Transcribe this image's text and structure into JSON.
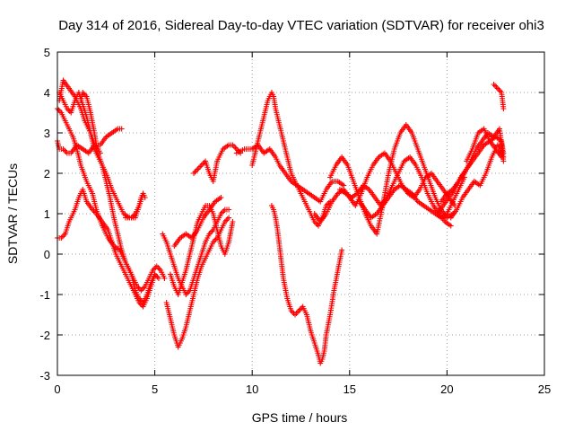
{
  "chart_data": {
    "type": "scatter",
    "title": "Day 314 of 2016, Sidereal Day-to-day VTEC variation (SDTVAR) for receiver ohi3",
    "xlabel": "GPS time / hours",
    "ylabel": "SDTVAR / TECUs",
    "xlim": [
      0,
      25
    ],
    "ylim": [
      -3,
      5
    ],
    "xticks": [
      0,
      5,
      10,
      15,
      20,
      25
    ],
    "yticks": [
      -3,
      -2,
      -1,
      0,
      1,
      2,
      3,
      4,
      5
    ],
    "grid": true,
    "marker": "+",
    "color": "#ff0000",
    "series": [
      {
        "x": [
          0.0,
          0.1,
          0.3,
          0.5,
          0.7,
          1.0,
          1.3,
          1.6,
          1.9,
          2.2,
          2.5,
          2.8,
          3.1,
          3.3
        ],
        "y": [
          2.8,
          2.6,
          2.6,
          2.5,
          2.5,
          2.7,
          2.6,
          2.5,
          2.7,
          2.7,
          2.9,
          3.0,
          3.1,
          3.1
        ]
      },
      {
        "x": [
          0.0,
          0.2,
          0.4,
          0.6,
          0.8,
          1.0,
          1.2,
          1.5,
          1.8,
          2.0,
          2.3,
          2.6,
          2.9,
          3.2,
          3.5,
          3.8,
          4.0,
          4.2,
          4.4,
          4.6,
          4.8,
          5.0,
          5.2
        ],
        "y": [
          3.6,
          3.5,
          3.3,
          3.1,
          2.9,
          2.6,
          2.2,
          1.8,
          1.5,
          1.1,
          0.7,
          0.4,
          0.2,
          0.1,
          -0.2,
          -0.5,
          -0.9,
          -1.1,
          -1.2,
          -1.0,
          -0.7,
          -0.5,
          -0.6
        ]
      },
      {
        "x": [
          0.1,
          0.2,
          0.4,
          0.5,
          0.7,
          0.9,
          1.1,
          1.3,
          1.5,
          1.7,
          1.9,
          2.2,
          2.5,
          2.8,
          3.1,
          3.4,
          3.7,
          4.0,
          4.2,
          4.4
        ],
        "y": [
          4.0,
          3.9,
          3.7,
          3.6,
          3.5,
          3.8,
          4.0,
          3.7,
          3.4,
          3.0,
          2.6,
          2.3,
          2.0,
          1.6,
          1.3,
          1.0,
          0.9,
          0.9,
          1.2,
          1.5
        ]
      },
      {
        "x": [
          0.0,
          0.2,
          0.4,
          0.6,
          0.9,
          1.1,
          1.3,
          1.5,
          1.8,
          2.0,
          2.3,
          2.6,
          2.8,
          3.0,
          3.2,
          3.4,
          3.6,
          3.8,
          4.0,
          4.2,
          4.4,
          4.6,
          4.8,
          5.0
        ],
        "y": [
          0.4,
          0.4,
          0.5,
          0.8,
          1.1,
          1.4,
          1.6,
          1.3,
          1.1,
          1.0,
          0.8,
          0.6,
          0.3,
          0.0,
          -0.2,
          -0.4,
          -0.6,
          -0.8,
          -1.0,
          -1.2,
          -1.3,
          -1.1,
          -0.8,
          -0.5
        ]
      },
      {
        "x": [
          0.1,
          0.3,
          0.6,
          0.9,
          1.2,
          1.4,
          1.7,
          2.0,
          2.3,
          2.5,
          2.7,
          2.9,
          3.1,
          3.3,
          3.5,
          3.7,
          3.9,
          4.1,
          4.3,
          4.5,
          4.7,
          4.9,
          5.1,
          5.3,
          5.5
        ],
        "y": [
          3.8,
          4.3,
          4.1,
          3.9,
          3.6,
          3.3,
          3.0,
          2.6,
          2.2,
          1.8,
          1.4,
          0.9,
          0.5,
          0.1,
          -0.2,
          -0.4,
          -0.6,
          -0.8,
          -0.9,
          -0.8,
          -0.6,
          -0.4,
          -0.3,
          -0.4,
          -0.6
        ]
      },
      {
        "x": [
          1.2,
          1.3,
          1.5,
          1.7,
          1.9,
          2.0,
          2.2
        ],
        "y": [
          3.8,
          4.0,
          3.9,
          3.5,
          3.0,
          2.7,
          2.5
        ]
      },
      {
        "x": [
          3.5,
          3.8,
          4.0,
          4.2,
          4.3,
          4.4,
          4.5
        ],
        "y": [
          0.9,
          0.9,
          1.0,
          1.2,
          1.4,
          1.5,
          1.4
        ]
      },
      {
        "x": [
          5.4,
          5.6,
          5.8,
          6.0,
          6.2,
          6.4,
          6.6,
          6.8,
          7.0,
          7.2,
          7.4,
          7.6,
          7.8,
          8.0,
          8.2,
          8.4,
          8.6,
          8.8
        ],
        "y": [
          0.5,
          0.3,
          0.0,
          -0.3,
          -0.6,
          -0.8,
          -1.0,
          -0.9,
          -0.6,
          -0.3,
          0.0,
          0.3,
          0.5,
          0.6,
          0.8,
          1.0,
          1.1,
          1.1
        ]
      },
      {
        "x": [
          5.8,
          6.0,
          6.2,
          6.4,
          6.6,
          6.8,
          7.0,
          7.2,
          7.4,
          7.6,
          7.8,
          8.0,
          8.2,
          8.4,
          8.6,
          8.8,
          9.0
        ],
        "y": [
          -0.5,
          -0.8,
          -1.0,
          -0.7,
          -0.4,
          0.0,
          0.4,
          0.8,
          1.0,
          1.2,
          1.2,
          1.0,
          0.6,
          0.2,
          0.0,
          0.3,
          0.8
        ]
      },
      {
        "x": [
          5.6,
          5.8,
          6.0,
          6.2,
          6.4,
          6.6,
          6.8,
          7.0,
          7.2,
          7.4,
          7.6,
          7.8,
          8.0,
          8.2,
          8.4,
          8.6,
          8.8
        ],
        "y": [
          -1.2,
          -1.6,
          -2.0,
          -2.3,
          -2.1,
          -1.8,
          -1.4,
          -1.0,
          -0.6,
          -0.3,
          -0.1,
          0.1,
          0.3,
          0.4,
          0.6,
          0.8,
          0.9
        ]
      },
      {
        "x": [
          6.0,
          6.3,
          6.6,
          6.9,
          7.2,
          7.5,
          7.8,
          8.1,
          8.4
        ],
        "y": [
          0.2,
          0.4,
          0.5,
          0.4,
          0.6,
          0.9,
          1.1,
          1.3,
          1.4
        ]
      },
      {
        "x": [
          7.0,
          7.2,
          7.4,
          7.6,
          7.8,
          8.0,
          8.2,
          8.5,
          8.8,
          9.0,
          9.2,
          9.4
        ],
        "y": [
          2.0,
          2.1,
          2.2,
          2.3,
          2.0,
          1.8,
          2.3,
          2.6,
          2.7,
          2.7,
          2.6,
          2.5
        ]
      },
      {
        "x": [
          9.2,
          9.6,
          10.0,
          10.3,
          10.6,
          10.9,
          11.2,
          11.4,
          11.7,
          12.0,
          12.3,
          12.6,
          12.9,
          13.2,
          13.5,
          13.8,
          14.1,
          14.4,
          14.7
        ],
        "y": [
          2.5,
          2.6,
          2.6,
          2.7,
          2.5,
          2.6,
          2.4,
          2.2,
          2.0,
          1.8,
          1.7,
          1.6,
          1.5,
          1.4,
          1.3,
          1.6,
          1.8,
          1.8,
          1.7
        ]
      },
      {
        "x": [
          10.0,
          10.2,
          10.4,
          10.6,
          10.8,
          11.0,
          11.1,
          11.2,
          11.4,
          11.6,
          11.8,
          12.0,
          12.2,
          12.4,
          12.6,
          12.8,
          13.0,
          13.2,
          13.4,
          13.6,
          13.8,
          14.0
        ],
        "y": [
          2.2,
          2.6,
          3.0,
          3.4,
          3.8,
          4.0,
          3.9,
          3.6,
          3.2,
          2.8,
          2.4,
          2.0,
          1.8,
          1.6,
          1.4,
          1.2,
          1.0,
          0.8,
          0.7,
          0.9,
          1.2,
          1.3
        ]
      },
      {
        "x": [
          11.0,
          11.1,
          11.2,
          11.3,
          11.4,
          11.5,
          11.6,
          11.8,
          12.0,
          12.2,
          12.4,
          12.6,
          12.8,
          13.0,
          13.2,
          13.4,
          13.5,
          13.6,
          13.7,
          13.8,
          14.0,
          14.2,
          14.4,
          14.6
        ],
        "y": [
          1.2,
          1.1,
          0.9,
          0.6,
          0.2,
          -0.2,
          -0.6,
          -1.1,
          -1.4,
          -1.5,
          -1.4,
          -1.3,
          -1.5,
          -1.9,
          -2.2,
          -2.5,
          -2.7,
          -2.6,
          -2.4,
          -2.0,
          -1.5,
          -0.9,
          -0.4,
          0.1
        ]
      },
      {
        "x": [
          13.2,
          13.5,
          13.8,
          14.1,
          14.4,
          14.7,
          15.0,
          15.3,
          15.6,
          15.9,
          16.2,
          16.5,
          16.8,
          17.1,
          17.4,
          17.7,
          18.0,
          18.3,
          18.6,
          18.9,
          19.2,
          19.5,
          19.8,
          20.1,
          20.4
        ],
        "y": [
          1.0,
          0.8,
          1.0,
          1.3,
          1.5,
          1.6,
          1.4,
          1.2,
          1.5,
          1.9,
          2.2,
          2.4,
          2.5,
          2.3,
          2.0,
          1.7,
          1.5,
          1.4,
          1.6,
          1.9,
          2.0,
          1.8,
          1.6,
          1.4,
          1.2
        ]
      },
      {
        "x": [
          14.0,
          14.3,
          14.6,
          14.9,
          15.2,
          15.5,
          15.8,
          16.1,
          16.4,
          16.7,
          17.0,
          17.3,
          17.6,
          17.9,
          18.2,
          18.5,
          18.8,
          19.1,
          19.4,
          19.7,
          20.0,
          20.3
        ],
        "y": [
          1.9,
          2.2,
          2.4,
          2.2,
          1.8,
          1.4,
          1.0,
          0.7,
          0.5,
          1.2,
          2.0,
          2.6,
          3.0,
          3.2,
          3.0,
          2.6,
          2.2,
          1.8,
          1.4,
          1.1,
          0.9,
          1.0
        ]
      },
      {
        "x": [
          14.5,
          14.8,
          15.1,
          15.4,
          15.7,
          16.0,
          16.3,
          16.6,
          16.9,
          17.2,
          17.5,
          17.8,
          18.1,
          18.4,
          18.7,
          19.0,
          19.3,
          19.6,
          19.9,
          20.2
        ],
        "y": [
          1.6,
          1.5,
          1.4,
          1.5,
          1.7,
          1.6,
          1.4,
          1.2,
          1.4,
          1.7,
          2.0,
          2.3,
          2.4,
          2.2,
          1.9,
          1.5,
          1.2,
          1.0,
          0.8,
          0.7
        ]
      },
      {
        "x": [
          15.5,
          15.8,
          16.1,
          16.4,
          16.7,
          17.0,
          17.3,
          17.6,
          17.9,
          18.2,
          18.5,
          18.8,
          19.1,
          19.4,
          19.7,
          20.0,
          20.3,
          20.6,
          20.9
        ],
        "y": [
          1.3,
          1.1,
          0.9,
          1.0,
          1.2,
          1.4,
          1.6,
          1.7,
          1.6,
          1.5,
          1.3,
          1.2,
          1.1,
          1.0,
          0.9,
          1.0,
          1.3,
          1.6,
          1.9
        ]
      },
      {
        "x": [
          19.5,
          19.8,
          20.1,
          20.4,
          20.7,
          21.0,
          21.3,
          21.6,
          21.9,
          22.2,
          22.5,
          22.8,
          22.9
        ],
        "y": [
          1.0,
          1.2,
          1.4,
          1.6,
          1.9,
          2.1,
          2.3,
          2.5,
          2.7,
          2.8,
          2.9,
          2.8,
          2.5
        ]
      },
      {
        "x": [
          19.7,
          20.0,
          20.3,
          20.6,
          20.9,
          21.2,
          21.5,
          21.8,
          22.1,
          22.4,
          22.7,
          22.9
        ],
        "y": [
          1.3,
          1.5,
          1.6,
          1.8,
          2.0,
          2.3,
          2.6,
          2.8,
          3.0,
          2.9,
          3.1,
          2.3
        ]
      },
      {
        "x": [
          20.2,
          20.5,
          20.8,
          21.1,
          21.4,
          21.7,
          22.0,
          22.3,
          22.6,
          22.9
        ],
        "y": [
          0.9,
          1.1,
          1.4,
          1.6,
          1.8,
          1.7,
          2.0,
          2.4,
          2.7,
          2.4
        ]
      },
      {
        "x": [
          21.0,
          21.3,
          21.6,
          21.9,
          22.2,
          22.5,
          22.8
        ],
        "y": [
          2.3,
          2.6,
          3.0,
          3.1,
          2.8,
          2.6,
          2.4
        ]
      },
      {
        "x": [
          22.4,
          22.6,
          22.8,
          22.9
        ],
        "y": [
          4.2,
          4.1,
          4.0,
          3.6
        ]
      }
    ]
  }
}
